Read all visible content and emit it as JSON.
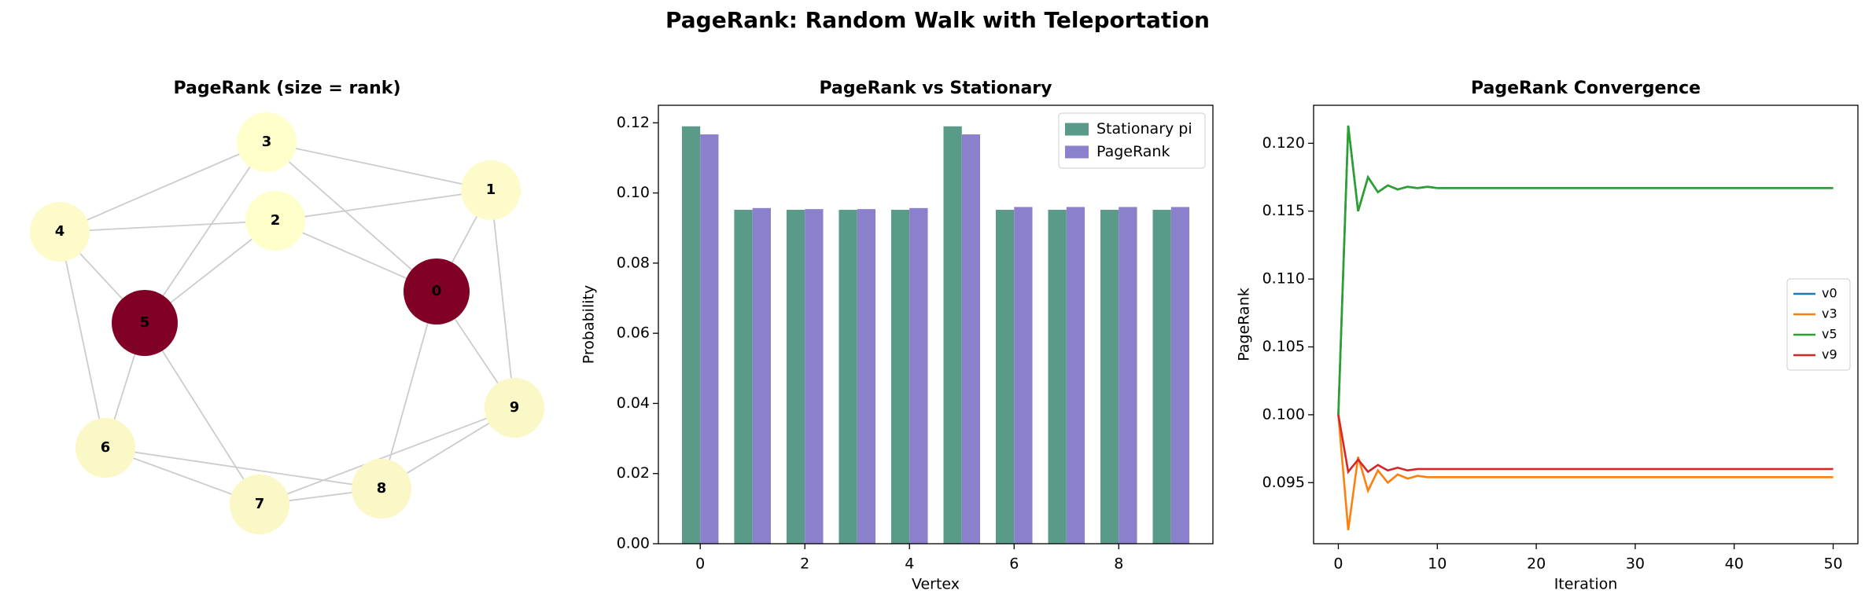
{
  "title": "PageRank: Random Walk with Teleportation",
  "chart_data": [
    {
      "type": "network",
      "title": "PageRank (size = rank)",
      "nodes": [
        "0",
        "1",
        "2",
        "3",
        "4",
        "5",
        "6",
        "7",
        "8",
        "9"
      ],
      "values": [
        0.1167,
        0.0957,
        0.0954,
        0.0954,
        0.0957,
        0.1167,
        0.096,
        0.096,
        0.096,
        0.096
      ],
      "edges": [
        [
          0,
          1
        ],
        [
          0,
          2
        ],
        [
          0,
          3
        ],
        [
          0,
          8
        ],
        [
          0,
          9
        ],
        [
          1,
          2
        ],
        [
          1,
          3
        ],
        [
          1,
          9
        ],
        [
          2,
          4
        ],
        [
          2,
          5
        ],
        [
          3,
          4
        ],
        [
          3,
          5
        ],
        [
          4,
          5
        ],
        [
          4,
          6
        ],
        [
          5,
          6
        ],
        [
          5,
          7
        ],
        [
          6,
          7
        ],
        [
          6,
          8
        ],
        [
          7,
          8
        ],
        [
          7,
          9
        ],
        [
          8,
          9
        ]
      ],
      "colormap": [
        "#ffffcc",
        "#800026"
      ]
    },
    {
      "type": "bar",
      "title": "PageRank vs Stationary",
      "x_label": "Vertex",
      "y_label": "Probability",
      "x": [
        0,
        1,
        2,
        3,
        4,
        5,
        6,
        7,
        8,
        9
      ],
      "series": [
        {
          "name": "Stationary pi",
          "color": "#5a9a88",
          "values": [
            0.119,
            0.0952,
            0.0952,
            0.0952,
            0.0952,
            0.119,
            0.0952,
            0.0952,
            0.0952,
            0.0952
          ]
        },
        {
          "name": "PageRank",
          "color": "#8a80cc",
          "values": [
            0.1167,
            0.0957,
            0.0954,
            0.0954,
            0.0957,
            0.1167,
            0.096,
            0.096,
            0.096,
            0.096
          ]
        }
      ],
      "xlim": [
        -0.8,
        9.8
      ],
      "xticks": [
        0,
        2,
        4,
        6,
        8
      ],
      "ylim": [
        0,
        0.125
      ],
      "yticks": [
        {
          "value": 0,
          "label": "0.00"
        },
        {
          "value": 0.02,
          "label": "0.02"
        },
        {
          "value": 0.04,
          "label": "0.04"
        },
        {
          "value": 0.06,
          "label": "0.06"
        },
        {
          "value": 0.08,
          "label": "0.08"
        },
        {
          "value": 0.1,
          "label": "0.10"
        },
        {
          "value": 0.12,
          "label": "0.12"
        }
      ],
      "legend": "upper right"
    },
    {
      "type": "line",
      "title": "PageRank Convergence",
      "x_label": "Iteration",
      "y_label": "PageRank",
      "x": [
        0,
        1,
        2,
        3,
        4,
        5,
        6,
        7,
        8,
        9,
        10,
        11,
        12,
        13,
        14,
        15,
        16,
        17,
        18,
        19,
        20,
        21,
        22,
        23,
        24,
        25,
        26,
        27,
        28,
        29,
        30,
        31,
        32,
        33,
        34,
        35,
        36,
        37,
        38,
        39,
        40,
        41,
        42,
        43,
        44,
        45,
        46,
        47,
        48,
        49,
        50
      ],
      "series": [
        {
          "name": "v0",
          "color": "#1f77b4",
          "values": [
            0.1,
            0.1213,
            0.115,
            0.1175,
            0.1164,
            0.1169,
            0.1166,
            0.1168,
            0.1167,
            0.1168,
            0.1167,
            0.1167,
            0.1167,
            0.1167,
            0.1167,
            0.1167,
            0.1167,
            0.1167,
            0.1167,
            0.1167,
            0.1167,
            0.1167,
            0.1167,
            0.1167,
            0.1167,
            0.1167,
            0.1167,
            0.1167,
            0.1167,
            0.1167,
            0.1167,
            0.1167,
            0.1167,
            0.1167,
            0.1167,
            0.1167,
            0.1167,
            0.1167,
            0.1167,
            0.1167,
            0.1167,
            0.1167,
            0.1167,
            0.1167,
            0.1167,
            0.1167,
            0.1167,
            0.1167,
            0.1167,
            0.1167,
            0.1167
          ]
        },
        {
          "name": "v3",
          "color": "#ff7f0e",
          "values": [
            0.1,
            0.0915,
            0.0969,
            0.0944,
            0.0959,
            0.095,
            0.0956,
            0.0953,
            0.0955,
            0.0954,
            0.0954,
            0.0954,
            0.0954,
            0.0954,
            0.0954,
            0.0954,
            0.0954,
            0.0954,
            0.0954,
            0.0954,
            0.0954,
            0.0954,
            0.0954,
            0.0954,
            0.0954,
            0.0954,
            0.0954,
            0.0954,
            0.0954,
            0.0954,
            0.0954,
            0.0954,
            0.0954,
            0.0954,
            0.0954,
            0.0954,
            0.0954,
            0.0954,
            0.0954,
            0.0954,
            0.0954,
            0.0954,
            0.0954,
            0.0954,
            0.0954,
            0.0954,
            0.0954,
            0.0954,
            0.0954,
            0.0954,
            0.0954
          ]
        },
        {
          "name": "v5",
          "color": "#2ca02c",
          "values": [
            0.1,
            0.1213,
            0.115,
            0.1175,
            0.1164,
            0.1169,
            0.1166,
            0.1168,
            0.1167,
            0.1168,
            0.1167,
            0.1167,
            0.1167,
            0.1167,
            0.1167,
            0.1167,
            0.1167,
            0.1167,
            0.1167,
            0.1167,
            0.1167,
            0.1167,
            0.1167,
            0.1167,
            0.1167,
            0.1167,
            0.1167,
            0.1167,
            0.1167,
            0.1167,
            0.1167,
            0.1167,
            0.1167,
            0.1167,
            0.1167,
            0.1167,
            0.1167,
            0.1167,
            0.1167,
            0.1167,
            0.1167,
            0.1167,
            0.1167,
            0.1167,
            0.1167,
            0.1167,
            0.1167,
            0.1167,
            0.1167,
            0.1167,
            0.1167
          ]
        },
        {
          "name": "v9",
          "color": "#d62728",
          "values": [
            0.1,
            0.0958,
            0.0967,
            0.0958,
            0.0963,
            0.0959,
            0.0961,
            0.0959,
            0.096,
            0.096,
            0.096,
            0.096,
            0.096,
            0.096,
            0.096,
            0.096,
            0.096,
            0.096,
            0.096,
            0.096,
            0.096,
            0.096,
            0.096,
            0.096,
            0.096,
            0.096,
            0.096,
            0.096,
            0.096,
            0.096,
            0.096,
            0.096,
            0.096,
            0.096,
            0.096,
            0.096,
            0.096,
            0.096,
            0.096,
            0.096,
            0.096,
            0.096,
            0.096,
            0.096,
            0.096,
            0.096,
            0.096,
            0.096,
            0.096,
            0.096,
            0.096
          ]
        }
      ],
      "xlim": [
        -2.5,
        52.5
      ],
      "xticks": [
        0,
        10,
        20,
        30,
        40,
        50
      ],
      "ylim": [
        0.0905,
        0.1228
      ],
      "yticks": [
        0.095,
        {
          "value": 0.1,
          "label": "0.100"
        },
        0.105,
        {
          "value": 0.11,
          "label": "0.110"
        },
        0.115,
        {
          "value": 0.12,
          "label": "0.120"
        }
      ],
      "legend": "center right"
    }
  ]
}
